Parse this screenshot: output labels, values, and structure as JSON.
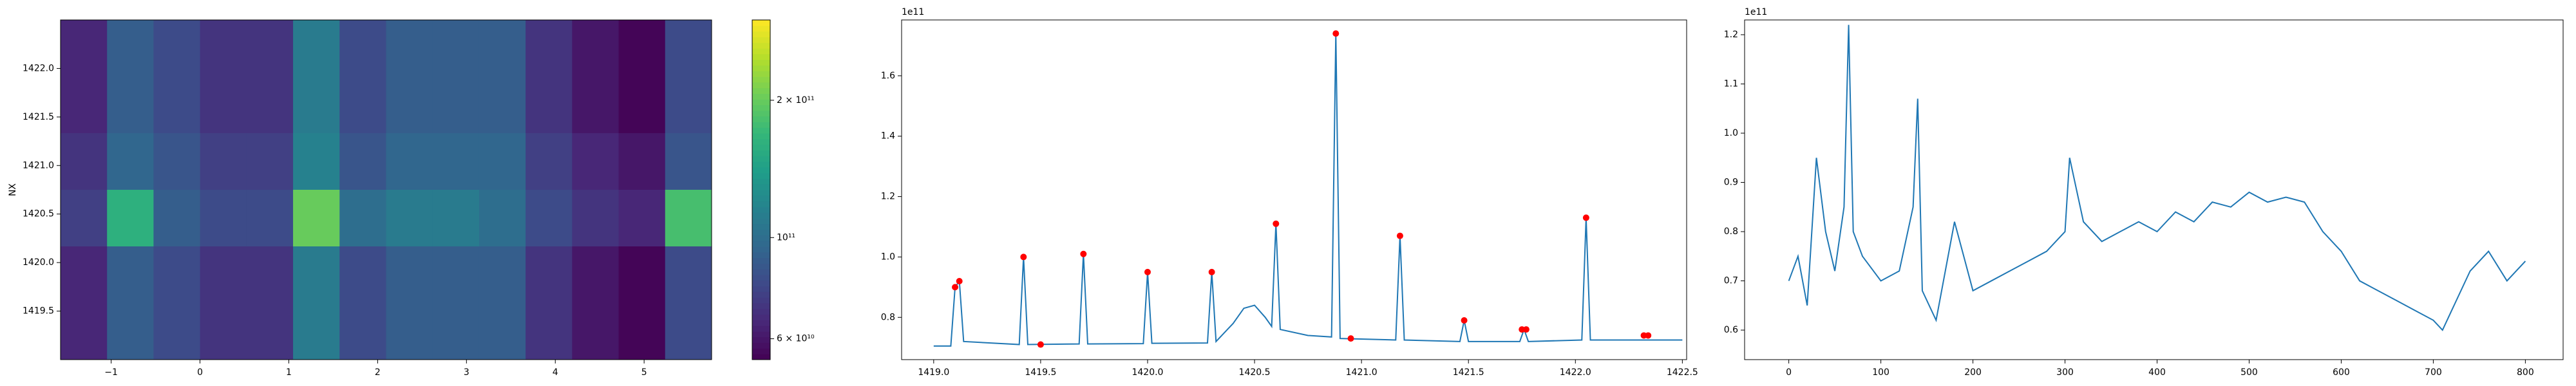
{
  "chart_data": [
    {
      "type": "heatmap",
      "ylabel": "NX",
      "colormap": "viridis",
      "color_scale": "log",
      "xlim": [
        -1.57,
        5.76
      ],
      "ylim": [
        1419.0,
        1422.5
      ],
      "xticks": [
        {
          "value": -1,
          "label": "−1"
        },
        0,
        1,
        2,
        3,
        4,
        5
      ],
      "yticks": [
        1419.5,
        {
          "value": 1420,
          "label": "1420.0"
        },
        1420.5,
        {
          "value": 1421,
          "label": "1421.0"
        },
        1421.5,
        {
          "value": 1422,
          "label": "1422.0"
        }
      ],
      "clim": [
        54000000000.0,
        300000000000.0
      ],
      "cticks": [
        {
          "value": 60000000000.0,
          "label": "6 × 10¹⁰"
        },
        {
          "value": 100000000000.0,
          "label": "10¹¹"
        },
        {
          "value": 200000000000.0,
          "label": "2 × 10¹¹"
        }
      ],
      "z": [
        [
          65000000000.0,
          90000000000.0,
          80000000000.0,
          70000000000.0,
          70000000000.0,
          110000000000.0,
          80000000000.0,
          90000000000.0,
          90000000000.0,
          90000000000.0,
          70000000000.0,
          60000000000.0,
          55000000000.0,
          80000000000.0
        ],
        [
          65000000000.0,
          90000000000.0,
          80000000000.0,
          70000000000.0,
          70000000000.0,
          110000000000.0,
          80000000000.0,
          90000000000.0,
          90000000000.0,
          90000000000.0,
          70000000000.0,
          60000000000.0,
          55000000000.0,
          80000000000.0
        ],
        [
          70000000000.0,
          95000000000.0,
          85000000000.0,
          75000000000.0,
          75000000000.0,
          115000000000.0,
          85000000000.0,
          95000000000.0,
          95000000000.0,
          95000000000.0,
          75000000000.0,
          65000000000.0,
          60000000000.0,
          85000000000.0
        ],
        [
          75000000000.0,
          160000000000.0,
          90000000000.0,
          80000000000.0,
          80000000000.0,
          200000000000.0,
          100000000000.0,
          110000000000.0,
          110000000000.0,
          100000000000.0,
          80000000000.0,
          70000000000.0,
          65000000000.0,
          180000000000.0
        ],
        [
          65000000000.0,
          90000000000.0,
          80000000000.0,
          70000000000.0,
          70000000000.0,
          110000000000.0,
          80000000000.0,
          90000000000.0,
          90000000000.0,
          90000000000.0,
          70000000000.0,
          60000000000.0,
          55000000000.0,
          80000000000.0
        ],
        [
          65000000000.0,
          90000000000.0,
          80000000000.0,
          70000000000.0,
          70000000000.0,
          110000000000.0,
          80000000000.0,
          90000000000.0,
          90000000000.0,
          90000000000.0,
          70000000000.0,
          60000000000.0,
          55000000000.0,
          80000000000.0
        ]
      ]
    },
    {
      "type": "line",
      "offset_label": "1e11",
      "color": "#1f77b4",
      "xlim": [
        1418.85,
        1422.52
      ],
      "ylim": [
        0.66,
        1.785
      ],
      "xticks": [
        {
          "value": 1419,
          "label": "1419.0"
        },
        1419.5,
        {
          "value": 1420,
          "label": "1420.0"
        },
        1420.5,
        {
          "value": 1421,
          "label": "1421.0"
        },
        1421.5,
        {
          "value": 1422,
          "label": "1422.0"
        },
        1422.5
      ],
      "yticks": [
        0.8,
        {
          "value": 1,
          "label": "1.0"
        },
        1.2,
        1.4,
        1.6
      ],
      "x": [
        1419.0,
        1419.08,
        1419.1,
        1419.12,
        1419.14,
        1419.4,
        1419.42,
        1419.44,
        1419.68,
        1419.7,
        1419.72,
        1419.98,
        1420.0,
        1420.02,
        1420.28,
        1420.3,
        1420.32,
        1420.4,
        1420.45,
        1420.5,
        1420.55,
        1420.58,
        1420.6,
        1420.62,
        1420.75,
        1420.86,
        1420.88,
        1420.9,
        1421.16,
        1421.18,
        1421.2,
        1421.46,
        1421.48,
        1421.5,
        1421.74,
        1421.76,
        1421.78,
        1422.03,
        1422.05,
        1422.07,
        1422.5
      ],
      "values": [
        0.705,
        0.705,
        0.9,
        0.92,
        0.72,
        0.71,
        1.0,
        0.71,
        0.712,
        1.01,
        0.712,
        0.713,
        0.95,
        0.714,
        0.715,
        0.95,
        0.72,
        0.78,
        0.83,
        0.84,
        0.8,
        0.77,
        1.11,
        0.76,
        0.74,
        0.735,
        1.74,
        0.73,
        0.725,
        1.07,
        0.725,
        0.72,
        0.79,
        0.72,
        0.72,
        0.76,
        0.72,
        0.725,
        1.13,
        0.725,
        0.725
      ],
      "markers": {
        "color": "#ff0000",
        "x": [
          1419.1,
          1419.12,
          1419.42,
          1419.5,
          1419.7,
          1420.0,
          1420.3,
          1420.6,
          1420.88,
          1420.95,
          1421.18,
          1421.48,
          1421.75,
          1421.77,
          1422.05,
          1422.32,
          1422.34
        ],
        "values": [
          0.9,
          0.92,
          1.0,
          0.71,
          1.01,
          0.95,
          0.95,
          1.11,
          1.74,
          0.73,
          1.07,
          0.79,
          0.76,
          0.76,
          1.13,
          0.74,
          0.74
        ]
      }
    },
    {
      "type": "line",
      "offset_label": "1e11",
      "color": "#1f77b4",
      "xlim": [
        -48,
        841
      ],
      "ylim": [
        0.54,
        1.23
      ],
      "xticks": [
        0,
        100,
        200,
        300,
        400,
        500,
        600,
        700,
        800
      ],
      "yticks": [
        0.6,
        0.7,
        0.8,
        0.9,
        {
          "value": 1,
          "label": "1.0"
        },
        1.1,
        1.2
      ],
      "x": [
        0,
        10,
        20,
        30,
        40,
        50,
        60,
        65,
        70,
        80,
        100,
        120,
        135,
        140,
        145,
        160,
        180,
        200,
        220,
        240,
        260,
        280,
        300,
        305,
        320,
        340,
        360,
        380,
        400,
        420,
        440,
        460,
        480,
        500,
        520,
        540,
        560,
        580,
        600,
        620,
        640,
        660,
        680,
        700,
        710,
        720,
        740,
        760,
        780,
        800
      ],
      "values": [
        0.7,
        0.75,
        0.65,
        0.95,
        0.8,
        0.72,
        0.85,
        1.22,
        0.8,
        0.75,
        0.7,
        0.72,
        0.85,
        1.07,
        0.68,
        0.62,
        0.82,
        0.68,
        0.7,
        0.72,
        0.74,
        0.76,
        0.8,
        0.95,
        0.82,
        0.78,
        0.8,
        0.82,
        0.8,
        0.84,
        0.82,
        0.86,
        0.85,
        0.88,
        0.86,
        0.87,
        0.86,
        0.8,
        0.76,
        0.7,
        0.68,
        0.66,
        0.64,
        0.62,
        0.6,
        0.64,
        0.72,
        0.76,
        0.7,
        0.74
      ]
    }
  ]
}
